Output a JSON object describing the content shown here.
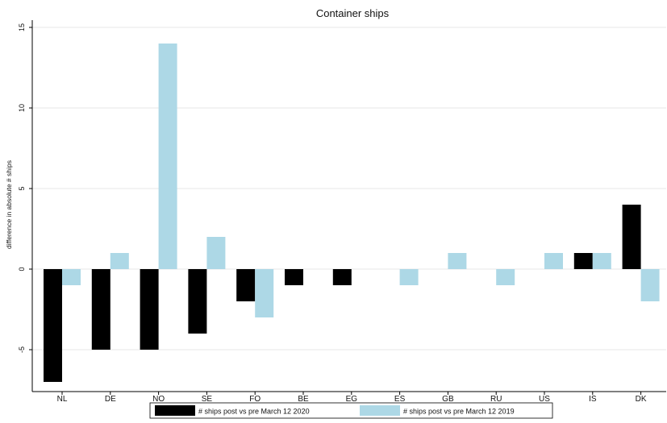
{
  "chart_data": {
    "type": "bar",
    "title": "Container ships",
    "ylabel": "difference in absolute # ships",
    "xlabel": "",
    "ylim": [
      -7,
      15
    ],
    "yticks": [
      15,
      10,
      5,
      0,
      -5
    ],
    "categories": [
      "NL",
      "DE",
      "NO",
      "SE",
      "FO",
      "BE",
      "EG",
      "ES",
      "GB",
      "RU",
      "US",
      "IS",
      "DK"
    ],
    "series": [
      {
        "name": "# ships post vs pre March 12 2020",
        "color": "#000000",
        "values": [
          -7,
          -5,
          -5,
          -4,
          -2,
          -1,
          -1,
          0,
          0,
          0,
          0,
          1,
          4
        ]
      },
      {
        "name": "# ships post vs pre March 12 2019",
        "color": "#add8e6",
        "values": [
          -1,
          1,
          14,
          2,
          -3,
          0,
          0,
          -1,
          1,
          -1,
          1,
          1,
          -2
        ]
      }
    ],
    "grid": true,
    "legend_position": "bottom"
  }
}
